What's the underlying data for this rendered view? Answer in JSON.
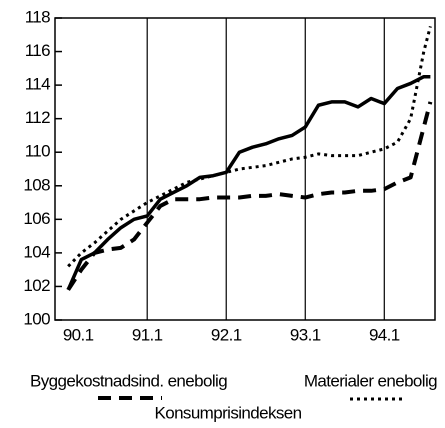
{
  "chart_data": {
    "type": "line",
    "x": [
      0,
      2,
      4,
      6,
      8,
      10,
      12,
      14,
      16,
      18,
      20,
      22,
      24,
      26,
      28,
      30,
      32,
      34,
      36,
      38,
      40,
      42,
      44,
      46,
      48,
      50,
      52,
      54,
      55
    ],
    "series": [
      {
        "name": "Byggekostnadsind. enebolig",
        "color": "#000000",
        "style": "solid",
        "values": [
          101.8,
          103.6,
          104.0,
          104.8,
          105.5,
          106.0,
          106.2,
          107.2,
          107.6,
          108.0,
          108.5,
          108.6,
          108.8,
          110.0,
          110.3,
          110.5,
          110.8,
          111.0,
          111.5,
          112.8,
          113.0,
          113.0,
          112.7,
          113.2,
          112.9,
          113.8,
          114.1,
          114.5,
          114.5
        ]
      },
      {
        "name": "Materialer enebolig",
        "color": "#000000",
        "style": "dotted",
        "values": [
          103.2,
          104.0,
          104.6,
          105.3,
          106.0,
          106.5,
          107.0,
          107.4,
          107.8,
          108.2,
          108.4,
          108.6,
          108.8,
          109.0,
          109.1,
          109.2,
          109.4,
          109.6,
          109.7,
          109.9,
          109.8,
          109.8,
          109.8,
          110.0,
          110.2,
          110.6,
          112.0,
          116.0,
          117.5
        ]
      },
      {
        "name": "Konsumprisindeksen",
        "color": "#000000",
        "style": "dashed",
        "values": [
          101.8,
          103.0,
          104.0,
          104.2,
          104.3,
          104.8,
          105.8,
          106.8,
          107.2,
          107.2,
          107.2,
          107.3,
          107.3,
          107.3,
          107.4,
          107.4,
          107.5,
          107.4,
          107.3,
          107.5,
          107.6,
          107.6,
          107.7,
          107.7,
          107.8,
          108.2,
          108.5,
          111.5,
          113.0
        ]
      }
    ],
    "xlim": [
      -2,
      55.7
    ],
    "xticks": [
      {
        "value": 0,
        "label": "90.1"
      },
      {
        "value": 12,
        "label": "91.1"
      },
      {
        "value": 24,
        "label": "92.1"
      },
      {
        "value": 36,
        "label": "93.1"
      },
      {
        "value": 48,
        "label": "94.1"
      }
    ],
    "ylim": [
      100,
      118
    ],
    "yticks": [
      100,
      102,
      104,
      106,
      108,
      110,
      112,
      114,
      116,
      118
    ],
    "grid": true
  }
}
